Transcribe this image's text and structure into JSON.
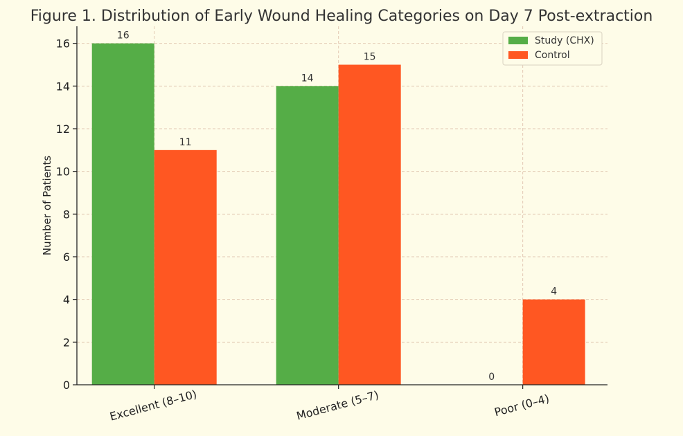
{
  "chart_data": {
    "type": "bar",
    "title": "Figure 1. Distribution of Early Wound Healing Categories on Day 7 Post-extraction",
    "xlabel": "",
    "ylabel": "Number of Patients",
    "categories": [
      "Excellent (8–10)",
      "Moderate (5–7)",
      "Poor (0–4)"
    ],
    "series": [
      {
        "name": "Study (CHX)",
        "values": [
          16,
          14,
          0
        ],
        "color": "#55ad47"
      },
      {
        "name": "Control",
        "values": [
          11,
          15,
          4
        ],
        "color": "#ff5722"
      }
    ],
    "ylim": [
      0,
      16.8
    ],
    "yticks": [
      "0",
      "2",
      "4",
      "6",
      "8",
      "10",
      "12",
      "14",
      "16"
    ],
    "grid": true,
    "legend_position": "top-right",
    "data_labels": true
  },
  "colors": {
    "background": "#fefce8",
    "grid": "#e3c9b4",
    "axis": "#222222",
    "text": "#333333"
  }
}
